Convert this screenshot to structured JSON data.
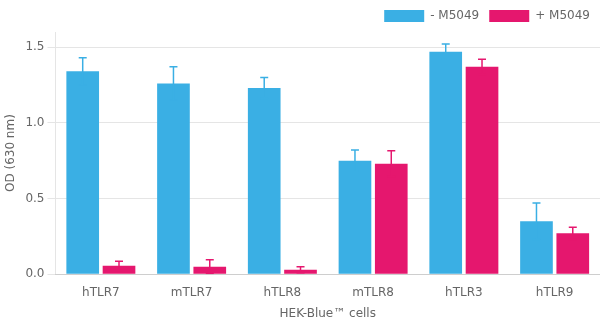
{
  "chart_data": {
    "type": "bar",
    "categories": [
      "hTLR7",
      "mTLR7",
      "hTLR8",
      "mTLR8",
      "hTLR3",
      "hTLR9"
    ],
    "series": [
      {
        "name": "- M5049",
        "color": "#3AAFE4",
        "values": [
          1.34,
          1.26,
          1.23,
          0.75,
          1.47,
          0.35
        ],
        "errors": [
          0.09,
          0.11,
          0.07,
          0.07,
          0.05,
          0.12
        ]
      },
      {
        "name": "+ M5049",
        "color": "#E5176E",
        "values": [
          0.055,
          0.05,
          0.03,
          0.73,
          1.37,
          0.27
        ],
        "errors": [
          0.03,
          0.045,
          0.02,
          0.085,
          0.05,
          0.04
        ]
      }
    ],
    "xlabel": "HEK-Blue™ cells",
    "ylabel": "OD (630 nm)",
    "ylim": [
      0,
      1.6
    ],
    "yticks": [
      {
        "value": 0.0,
        "label": "0.0"
      },
      0.5,
      {
        "value": 1.0,
        "label": "1.0"
      },
      1.5
    ],
    "grid": true,
    "legend": "upper right"
  }
}
